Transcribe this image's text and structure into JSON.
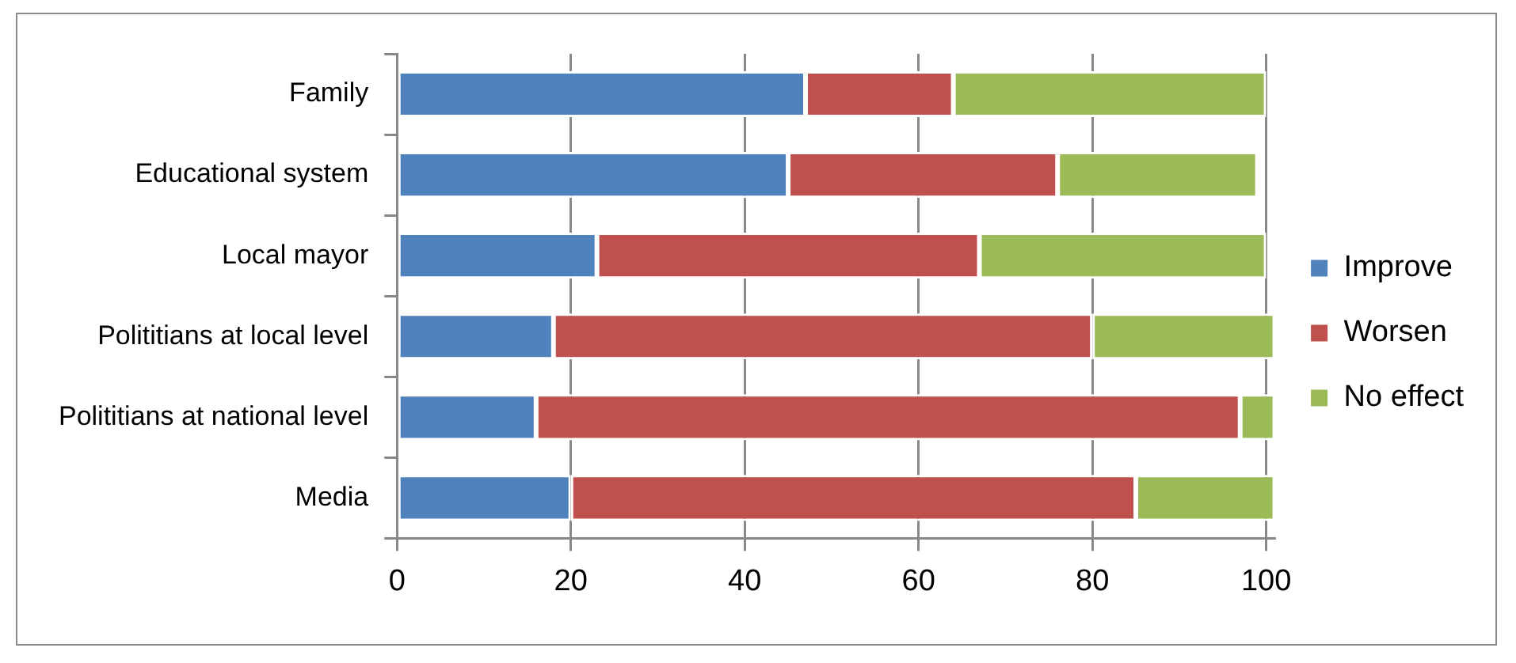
{
  "chart_data": {
    "type": "bar",
    "orientation": "horizontal",
    "stacked": true,
    "categories": [
      "Family",
      "Educational system",
      "Local mayor",
      "Polititians at local level",
      "Polititians at national level",
      "Media"
    ],
    "series": [
      {
        "name": "Improve",
        "color": "#4f81bd",
        "values": [
          47,
          45,
          23,
          18,
          16,
          20
        ]
      },
      {
        "name": "Worsen",
        "color": "#c0504d",
        "values": [
          17,
          31,
          44,
          62,
          81,
          65
        ]
      },
      {
        "name": "No effect",
        "color": "#9bbb59",
        "values": [
          36,
          23,
          33,
          21,
          4,
          16
        ]
      }
    ],
    "xlim": [
      0,
      101
    ],
    "xticks": [
      0,
      20,
      40,
      60,
      80,
      100
    ],
    "grid": "x",
    "legend": "right"
  }
}
